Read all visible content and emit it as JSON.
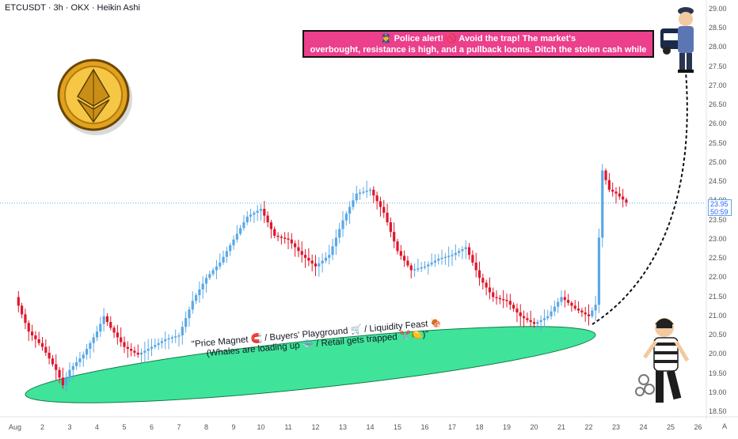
{
  "header": {
    "title": "ETCUSDT · 3h · OKX · Heikin Ashi"
  },
  "banner": {
    "line1": "👮‍♀️ Police alert! 🚫 Avoid the trap! The market's",
    "line2": "overbought, resistance is high, and a pullback looms. Ditch the stolen cash while you can."
  },
  "ellipse_note": {
    "line1": "\"Price Magnet 🧲 / Buyers' Playground 🛒 / Liquidity Feast 🍖",
    "line2": "(Whales are loading up 🐳 / Retail gets trapped ✂️🍋)\""
  },
  "current_price": {
    "price": "23.95",
    "countdown": "50:59"
  },
  "axis_corner_label": "A",
  "colors": {
    "up": "#5aa8e6",
    "down": "#e0162b",
    "ellipse_fill": "#3fe49a",
    "banner": "#ec3f8c",
    "price_line": "#5aa8e6"
  },
  "icons": [
    "ethereum-coin-icon",
    "police-officer-icon",
    "robber-icon"
  ],
  "chart_data": {
    "type": "candlestick",
    "style": "Heikin Ashi",
    "symbol": "ETCUSDT",
    "timeframe": "3h",
    "exchange": "OKX",
    "y_ticks": [
      "29.00",
      "28.50",
      "28.00",
      "27.50",
      "27.00",
      "26.50",
      "26.00",
      "25.50",
      "25.00",
      "24.50",
      "24.00",
      "23.50",
      "23.00",
      "22.50",
      "22.00",
      "21.50",
      "21.00",
      "20.50",
      "20.00",
      "19.50",
      "19.00",
      "18.50"
    ],
    "ylim": [
      18.5,
      29.0
    ],
    "x_ticks": [
      "Aug",
      "2",
      "3",
      "4",
      "5",
      "6",
      "7",
      "8",
      "9",
      "10",
      "11",
      "12",
      "13",
      "14",
      "15",
      "16",
      "17",
      "18",
      "19",
      "20",
      "21",
      "22",
      "23",
      "24",
      "25",
      "26"
    ],
    "x_day_range": [
      1,
      26.5
    ],
    "last_price": 23.95,
    "trend_points": [
      {
        "day": 1.0,
        "close": 21.5
      },
      {
        "day": 1.5,
        "close": 20.6
      },
      {
        "day": 2.0,
        "close": 20.2
      },
      {
        "day": 2.5,
        "close": 19.6
      },
      {
        "day": 2.75,
        "close": 19.2
      },
      {
        "day": 3.0,
        "close": 19.6
      },
      {
        "day": 3.5,
        "close": 20.0
      },
      {
        "day": 4.0,
        "close": 20.6
      },
      {
        "day": 4.25,
        "close": 21.0
      },
      {
        "day": 4.5,
        "close": 20.7
      },
      {
        "day": 5.0,
        "close": 20.2
      },
      {
        "day": 5.5,
        "close": 20.0
      },
      {
        "day": 6.0,
        "close": 20.2
      },
      {
        "day": 6.5,
        "close": 20.4
      },
      {
        "day": 7.0,
        "close": 20.5
      },
      {
        "day": 7.5,
        "close": 21.4
      },
      {
        "day": 8.0,
        "close": 22.0
      },
      {
        "day": 8.5,
        "close": 22.4
      },
      {
        "day": 9.0,
        "close": 23.0
      },
      {
        "day": 9.5,
        "close": 23.6
      },
      {
        "day": 10.0,
        "close": 23.8
      },
      {
        "day": 10.5,
        "close": 23.1
      },
      {
        "day": 11.0,
        "close": 23.0
      },
      {
        "day": 11.5,
        "close": 22.6
      },
      {
        "day": 12.0,
        "close": 22.3
      },
      {
        "day": 12.5,
        "close": 22.6
      },
      {
        "day": 13.0,
        "close": 23.5
      },
      {
        "day": 13.5,
        "close": 24.2
      },
      {
        "day": 14.0,
        "close": 24.3
      },
      {
        "day": 14.5,
        "close": 23.7
      },
      {
        "day": 15.0,
        "close": 22.7
      },
      {
        "day": 15.5,
        "close": 22.2
      },
      {
        "day": 16.0,
        "close": 22.3
      },
      {
        "day": 16.5,
        "close": 22.5
      },
      {
        "day": 17.0,
        "close": 22.6
      },
      {
        "day": 17.5,
        "close": 22.8
      },
      {
        "day": 18.0,
        "close": 22.0
      },
      {
        "day": 18.5,
        "close": 21.5
      },
      {
        "day": 19.0,
        "close": 21.4
      },
      {
        "day": 19.5,
        "close": 21.0
      },
      {
        "day": 20.0,
        "close": 20.8
      },
      {
        "day": 20.5,
        "close": 21.0
      },
      {
        "day": 21.0,
        "close": 21.5
      },
      {
        "day": 21.5,
        "close": 21.2
      },
      {
        "day": 22.0,
        "close": 21.0
      },
      {
        "day": 22.25,
        "close": 21.3
      },
      {
        "day": 22.5,
        "close": 24.8
      },
      {
        "day": 22.75,
        "close": 24.3
      },
      {
        "day": 23.0,
        "close": 24.2
      },
      {
        "day": 23.4,
        "close": 23.95
      }
    ]
  }
}
